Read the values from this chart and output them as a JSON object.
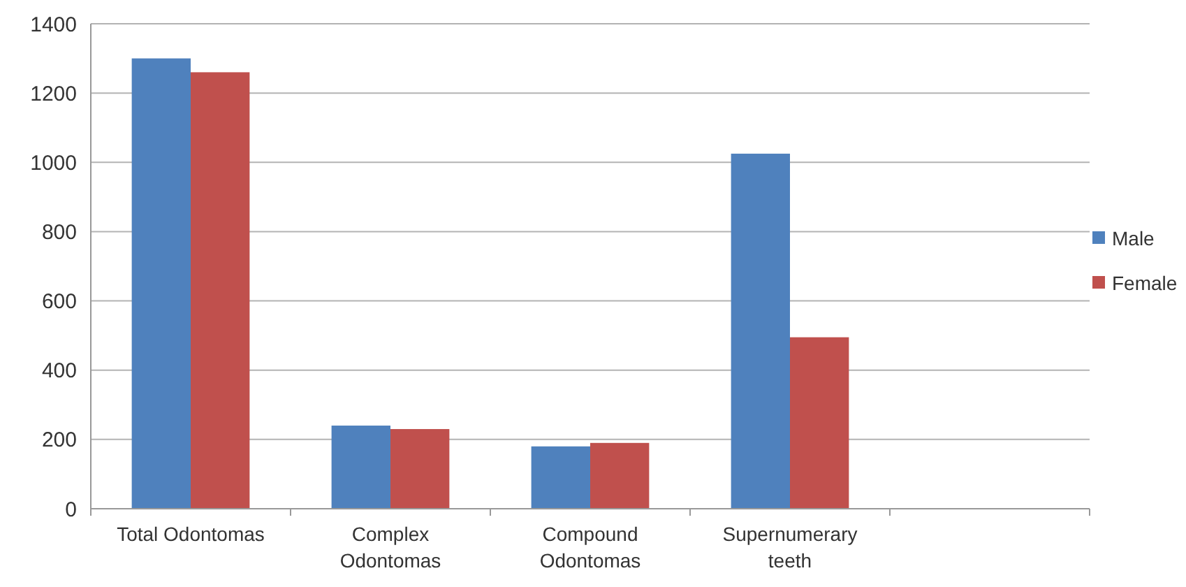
{
  "chart_data": {
    "type": "bar",
    "categories": [
      "Total Odontomas",
      "Complex Odontomas",
      "Compound Odontomas",
      "Supernumerary teeth",
      null
    ],
    "series": [
      {
        "name": "Male",
        "color": "#4f81bd",
        "values": [
          1300,
          240,
          180,
          1025,
          null
        ]
      },
      {
        "name": "Female",
        "color": "#c0504d",
        "values": [
          1260,
          230,
          190,
          495,
          null
        ]
      }
    ],
    "ylim": [
      0,
      1400
    ],
    "yticks": [
      0,
      200,
      400,
      600,
      800,
      1000,
      1200,
      1400
    ],
    "grid": "y",
    "legend": "right"
  }
}
